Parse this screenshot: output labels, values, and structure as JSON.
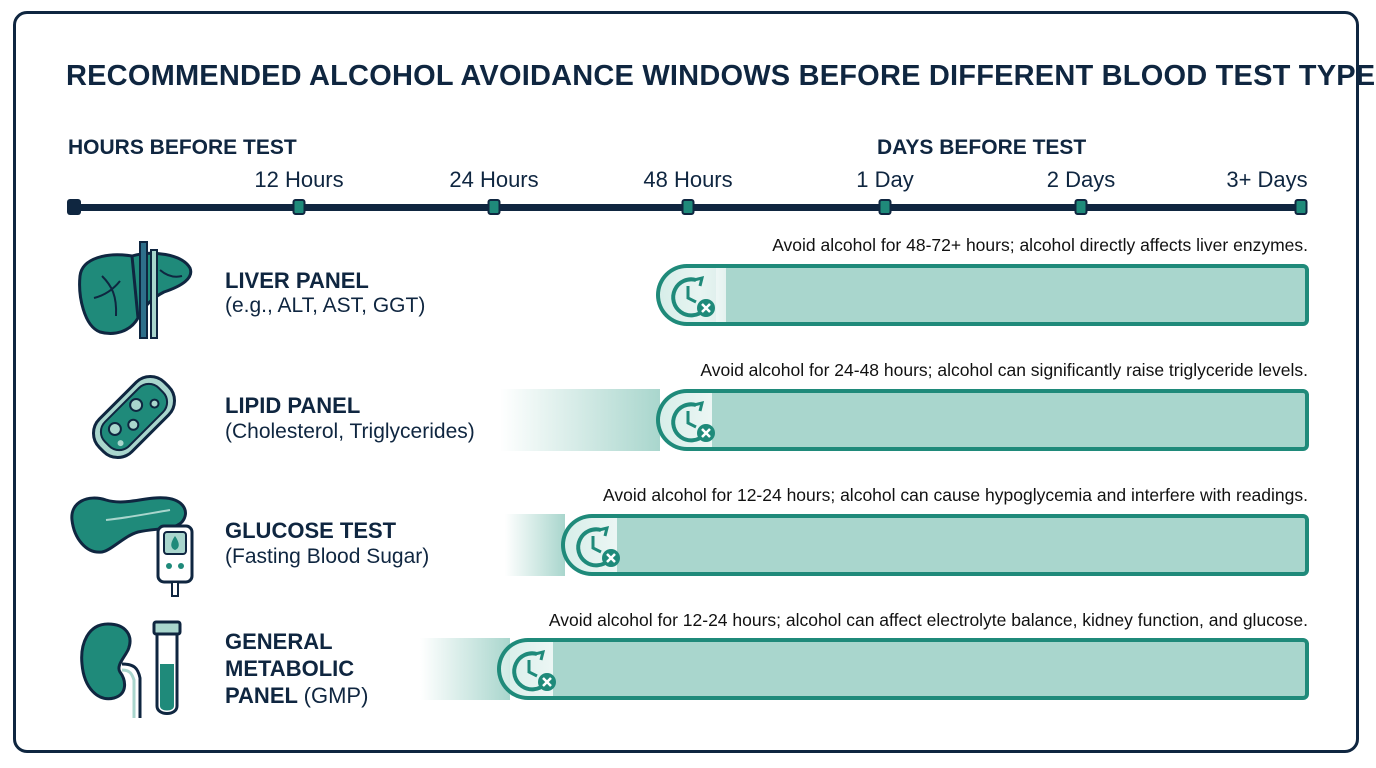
{
  "title": "RECOMMENDED ALCOHOL AVOIDANCE WINDOWS BEFORE DIFFERENT BLOOD TEST TYPES",
  "axis": {
    "hours_heading": "HOURS BEFORE TEST",
    "days_heading": "DAYS BEFORE TEST",
    "ticks": [
      "12 Hours",
      "24 Hours",
      "48 Hours",
      "1 Day",
      "2 Days",
      "3+ Days"
    ]
  },
  "rows": [
    {
      "name": "LIVER PANEL",
      "sub": "(e.g., ALT, AST, GGT)",
      "note": "Avoid alcohol for 48-72+ hours; alcohol directly affects liver enzymes.",
      "icon": "liver-icon"
    },
    {
      "name": "LIPID PANEL",
      "sub": "(Cholesterol, Triglycerides)",
      "note": "Avoid alcohol for 24-48 hours; alcohol can significantly raise triglyceride levels.",
      "icon": "blood-vessel-icon"
    },
    {
      "name": "GLUCOSE TEST",
      "sub": "(Fasting Blood Sugar)",
      "note": "Avoid alcohol for 12-24 hours; alcohol can cause hypoglycemia and interfere with readings.",
      "icon": "pancreas-glucometer-icon"
    },
    {
      "name_line1": "GENERAL",
      "name_line2": "METABOLIC",
      "name_line3": "PANEL",
      "name_suffix": "(GMP)",
      "note": "Avoid alcohol for 12-24 hours; alcohol can affect electrolyte balance, kidney function, and glucose.",
      "icon": "kidney-test-tube-icon"
    }
  ],
  "colors": {
    "navy": "#0f2640",
    "teal": "#1f8a7a",
    "bar_fill": "#a9d6cd"
  }
}
